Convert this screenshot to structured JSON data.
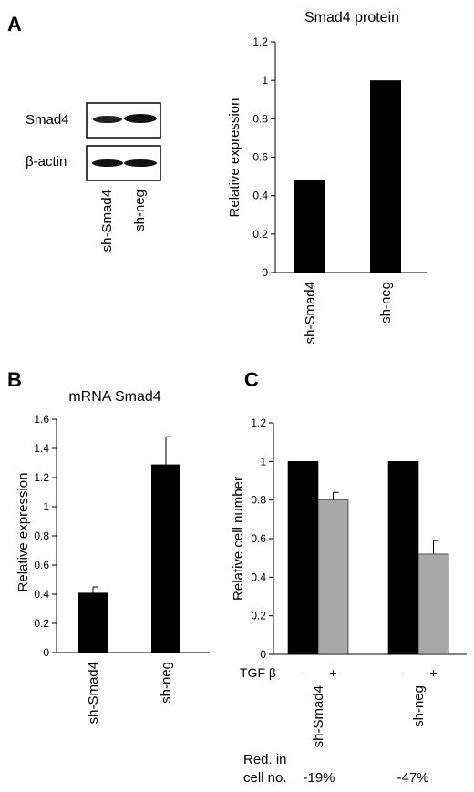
{
  "panels": {
    "A": "A",
    "B": "B",
    "C": "C"
  },
  "blot": {
    "bands": [
      "Smad4",
      "β-actin"
    ],
    "lanes": [
      "sh-Smad4",
      "sh-neg"
    ]
  },
  "reduction": {
    "label_line1": "Red. in",
    "label_line2": "cell no.",
    "values": [
      "-19%",
      "-47%"
    ]
  },
  "chart_data": [
    {
      "id": "A",
      "type": "bar",
      "title": "Smad4 protein",
      "ylabel": "Relative expression",
      "xlabel": "",
      "categories": [
        "sh-Smad4",
        "sh-neg"
      ],
      "values": [
        0.48,
        1.0
      ],
      "ylim": [
        0,
        1.2
      ],
      "yticks": [
        "0",
        "0.2",
        "0.4",
        "0.6",
        "0.8",
        "1",
        "1.2"
      ],
      "bar_color": "#000000",
      "grid": false
    },
    {
      "id": "B",
      "type": "bar",
      "title": "mRNA Smad4",
      "ylabel": "Relative expression",
      "xlabel": "",
      "categories": [
        "sh-Smad4",
        "sh-neg"
      ],
      "values": [
        0.41,
        1.29
      ],
      "errors": [
        0.04,
        0.19
      ],
      "ylim": [
        0,
        1.6
      ],
      "yticks": [
        "0",
        "0.2",
        "0.4",
        "0.6",
        "0.8",
        "1",
        "1.2",
        "1.4",
        "1.6"
      ],
      "bar_color": "#000000",
      "grid": false
    },
    {
      "id": "C",
      "type": "bar",
      "title": "",
      "ylabel": "Relative cell number",
      "xlabel": "",
      "categories": [
        "sh-Smad4",
        "sh-neg"
      ],
      "treatment_label": "TGF β",
      "treatment_levels": [
        "-",
        "+"
      ],
      "series": [
        {
          "values": [
            1.0,
            1.0
          ],
          "errors": [
            0,
            0
          ],
          "color": "#000000"
        },
        {
          "values": [
            0.8,
            0.52
          ],
          "errors": [
            0.04,
            0.07
          ],
          "color": "#a8a8a8"
        }
      ],
      "ylim": [
        0,
        1.2
      ],
      "yticks": [
        "0",
        "0.2",
        "0.4",
        "0.6",
        "0.8",
        "1",
        "1.2"
      ],
      "grid": false
    }
  ]
}
